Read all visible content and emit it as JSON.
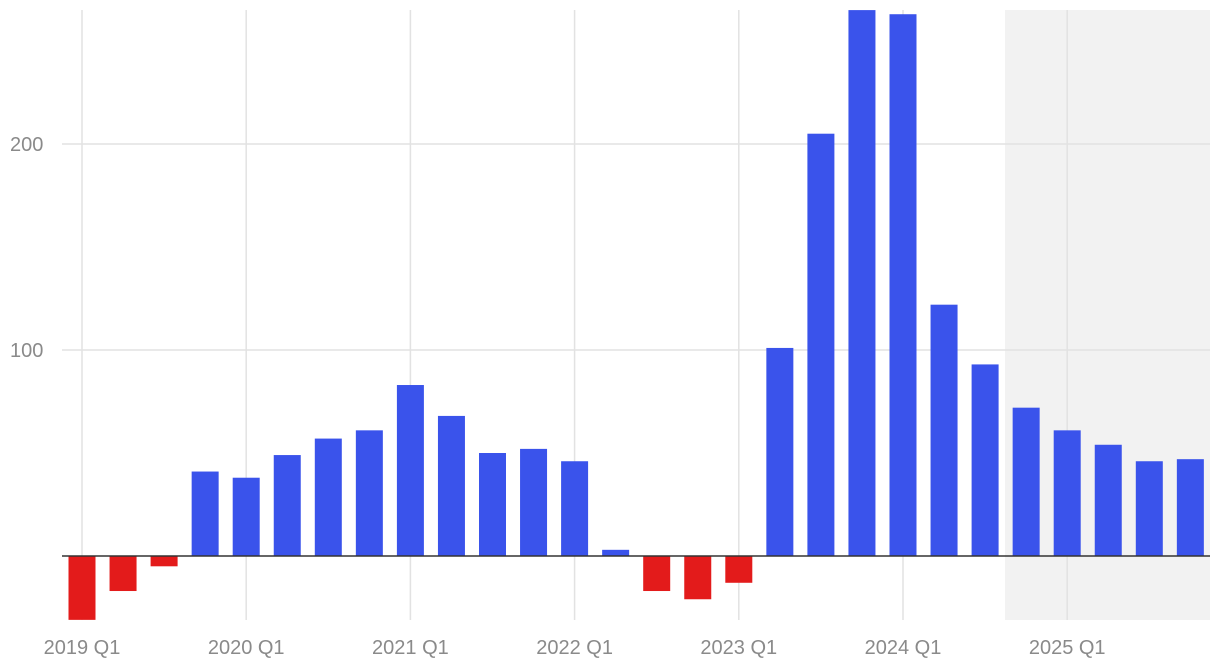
{
  "chart_data": {
    "type": "bar",
    "title": "",
    "xlabel": "",
    "ylabel": "",
    "ylim": [
      -31,
      265
    ],
    "y_ticks": [
      100,
      200
    ],
    "x_tick_labels": [
      "2019 Q1",
      "2020 Q1",
      "2021 Q1",
      "2022 Q1",
      "2023 Q1",
      "2024 Q1",
      "2025 Q1"
    ],
    "categories": [
      "2019 Q1",
      "2019 Q2",
      "2019 Q3",
      "2019 Q4",
      "2020 Q1",
      "2020 Q2",
      "2020 Q3",
      "2020 Q4",
      "2021 Q1",
      "2021 Q2",
      "2021 Q3",
      "2021 Q4",
      "2022 Q1",
      "2022 Q2",
      "2022 Q3",
      "2022 Q4",
      "2023 Q1",
      "2023 Q2",
      "2023 Q3",
      "2023 Q4",
      "2024 Q1",
      "2024 Q2",
      "2024 Q3",
      "2024 Q4",
      "2025 Q1",
      "2025 Q2",
      "2025 Q3",
      "2025 Q4"
    ],
    "values": [
      -31,
      -17,
      -5,
      41,
      38,
      49,
      57,
      61,
      83,
      68,
      50,
      52,
      46,
      3,
      -17,
      -21,
      -13,
      101,
      205,
      265,
      263,
      122,
      93,
      72,
      61,
      54,
      46,
      47
    ],
    "forecast_start": "2024 Q4",
    "colors": {
      "positive": "#3a53eb",
      "negative": "#e31b1b",
      "forecast_band": "#f2f2f2"
    },
    "grid": true
  }
}
